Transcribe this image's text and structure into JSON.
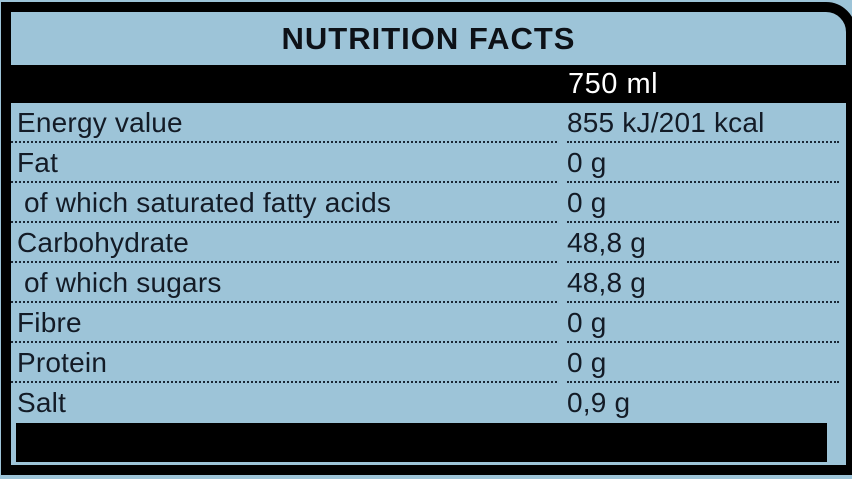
{
  "label": {
    "title": "NUTRITION FACTS",
    "serving_size": "750 ml",
    "rows": [
      {
        "name": "Energy value",
        "value": "855 kJ/201 kcal"
      },
      {
        "name": "Fat",
        "value": "0 g"
      },
      {
        "name": "of which saturated fatty acids",
        "value": "0 g"
      },
      {
        "name": "Carbohydrate",
        "value": "48,8 g"
      },
      {
        "name": "of which sugars",
        "value": "48,8 g"
      },
      {
        "name": "Fibre",
        "value": "0 g"
      },
      {
        "name": "Protein",
        "value": "0 g"
      },
      {
        "name": "Salt",
        "value": "0,9 g"
      }
    ],
    "colors": {
      "background": "#9dc4d8",
      "frame": "#000000",
      "bar": "#000000",
      "text": "#131b26",
      "bar_text": "#ffffff"
    }
  }
}
